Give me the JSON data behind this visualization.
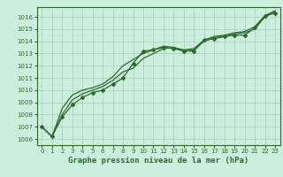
{
  "title": "Graphe pression niveau de la mer (hPa)",
  "bg_color": "#cceedd",
  "grid_color": "#aaccbb",
  "line_color": "#2d6a2d",
  "x_ticks": [
    0,
    1,
    2,
    3,
    4,
    5,
    6,
    7,
    8,
    9,
    10,
    11,
    12,
    13,
    14,
    15,
    16,
    17,
    18,
    19,
    20,
    21,
    22,
    23
  ],
  "y_ticks": [
    1006,
    1007,
    1008,
    1009,
    1010,
    1011,
    1012,
    1013,
    1014,
    1015,
    1016
  ],
  "ylim": [
    1005.5,
    1016.8
  ],
  "xlim": [
    -0.5,
    23.5
  ],
  "series": [
    [
      1007.0,
      1006.2,
      1007.8,
      1008.8,
      1009.4,
      1009.8,
      1010.0,
      1010.5,
      1011.0,
      1012.2,
      1013.2,
      1013.3,
      1013.5,
      1013.4,
      1013.2,
      1013.2,
      1014.1,
      1014.2,
      1014.4,
      1014.5,
      1014.5,
      1015.1,
      1016.1,
      1016.3
    ],
    [
      1007.0,
      1006.2,
      1008.0,
      1009.2,
      1009.7,
      1010.0,
      1010.3,
      1010.8,
      1011.5,
      1011.8,
      1012.6,
      1013.0,
      1013.4,
      1013.5,
      1013.2,
      1013.3,
      1014.0,
      1014.3,
      1014.4,
      1014.6,
      1014.7,
      1015.0,
      1016.0,
      1016.4
    ],
    [
      1007.0,
      1006.2,
      1008.5,
      1009.6,
      1010.0,
      1010.2,
      1010.5,
      1011.1,
      1012.0,
      1012.5,
      1013.0,
      1013.3,
      1013.6,
      1013.5,
      1013.3,
      1013.4,
      1014.1,
      1014.4,
      1014.5,
      1014.7,
      1014.8,
      1015.2,
      1016.1,
      1016.5
    ]
  ],
  "marker_series_idx": 0,
  "marker": "D",
  "marker_size": 2.0,
  "tick_fontsize": 5.0,
  "xlabel_fontsize": 6.5,
  "linewidth": 0.9
}
